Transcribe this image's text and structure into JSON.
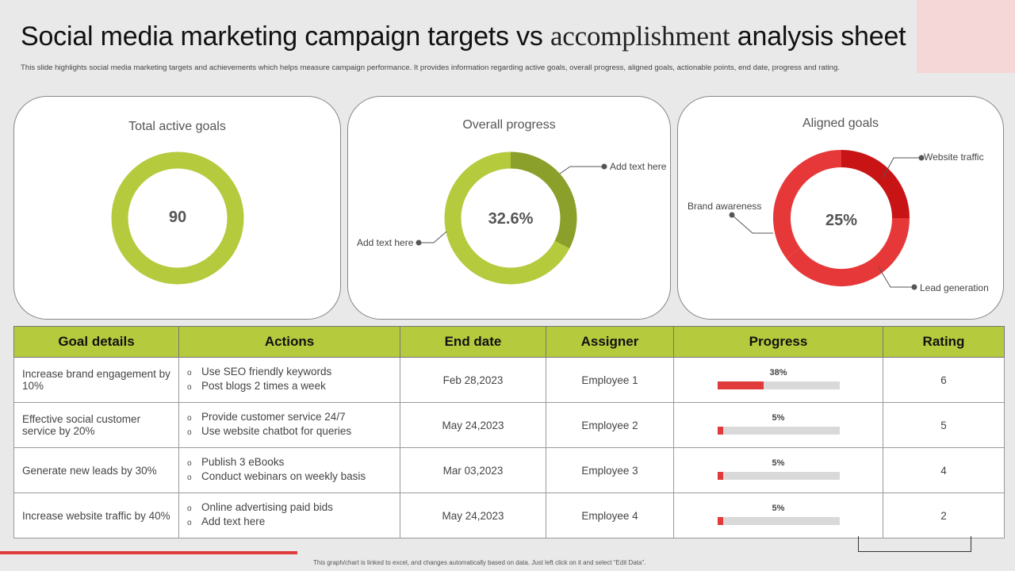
{
  "header": {
    "title_part1": "Social media marketing campaign targets vs ",
    "title_part2": "accomplishment",
    "title_part3": " analysis sheet",
    "subtitle": "This slide highlights social media marketing targets and achievements which helps measure campaign performance. It provides information regarding active goals, overall progress, aligned goals, actionable points, end date, progress and rating."
  },
  "colors": {
    "accent_green": "#b6ca3e",
    "dark_green": "#8ba02a",
    "accent_red": "#e63838",
    "dark_red": "#c81414",
    "track_grey": "#d9d9d9"
  },
  "chart_data": [
    {
      "type": "pie",
      "title": "Total active goals",
      "center_label": "90",
      "slices": [
        {
          "value": 100,
          "color": "#b6ca3e"
        }
      ]
    },
    {
      "type": "pie",
      "title": "Overall progress",
      "center_label": "32.6%",
      "slices": [
        {
          "name": "Add text here",
          "value": 32.6,
          "color": "#8ba02a"
        },
        {
          "name": "Add text here",
          "value": 67.4,
          "color": "#b6ca3e"
        }
      ]
    },
    {
      "type": "pie",
      "title": "Aligned goals",
      "center_label": "25%",
      "slices": [
        {
          "name": "Website traffic",
          "value": 25,
          "color": "#c81414"
        },
        {
          "name": "Lead generation",
          "value": 40,
          "color": "#e63838"
        },
        {
          "name": "Brand awareness",
          "value": 35,
          "color": "#e63838"
        }
      ]
    }
  ],
  "table": {
    "headers": [
      "Goal details",
      "Actions",
      "End date",
      "Assigner",
      "Progress",
      "Rating"
    ],
    "bullet": "o",
    "rows": [
      {
        "goal": "Increase brand engagement by 10%",
        "actions": [
          "Use SEO friendly keywords",
          "Post blogs 2 times a week"
        ],
        "end_date": "Feb 28,2023",
        "assigner": "Employee 1",
        "progress_label": "38%",
        "progress": 38,
        "rating": "6"
      },
      {
        "goal": "Effective social customer service  by 20%",
        "actions": [
          "Provide  customer service  24/7",
          "Use website chatbot for queries"
        ],
        "end_date": "May 24,2023",
        "assigner": "Employee 2",
        "progress_label": "5%",
        "progress": 5,
        "rating": "5"
      },
      {
        "goal": "Generate  new leads by 30%",
        "actions": [
          "Publish 3 eBooks",
          "Conduct webinars  on weekly basis"
        ],
        "end_date": "Mar 03,2023",
        "assigner": "Employee 3",
        "progress_label": "5%",
        "progress": 5,
        "rating": "4"
      },
      {
        "goal": "Increase website traffic by 40%",
        "actions": [
          "Online advertising  paid bids",
          "Add text here"
        ],
        "end_date": "May 24,2023",
        "assigner": "Employee 4",
        "progress_label": "5%",
        "progress": 5,
        "rating": "2"
      }
    ]
  },
  "footer": {
    "note": "This graph/chart is linked to excel, and changes automatically based on data. Just left click on it and select “Edit Data”."
  }
}
